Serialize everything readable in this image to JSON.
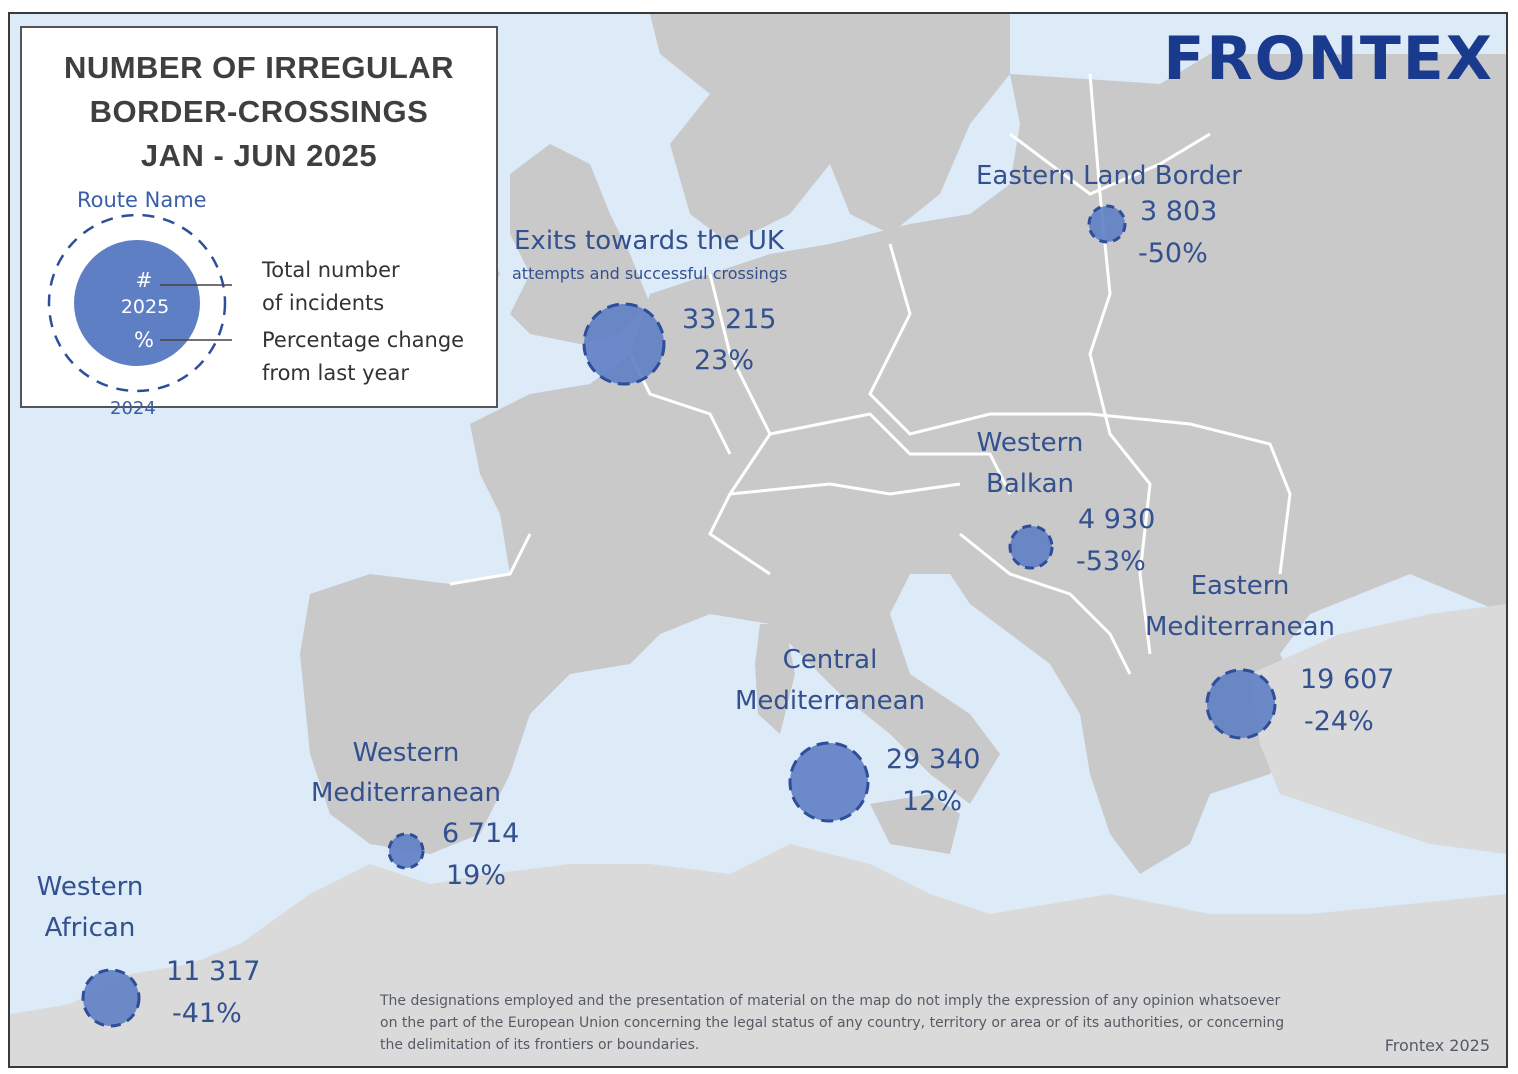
{
  "title_lines": [
    "NUMBER OF IRREGULAR",
    "BORDER-CROSSINGS",
    "JAN - JUN 2025"
  ],
  "brand": "FRONTEX",
  "legend": {
    "route_name": "Route Name",
    "hash": "#",
    "year_current": "2025",
    "percent": "%",
    "year_previous": "2024",
    "total_line1": "Total number",
    "total_line2": "of incidents",
    "change_line1": "Percentage change",
    "change_line2": "from last year"
  },
  "routes": [
    {
      "name_lines": [
        "Exits towards the UK"
      ],
      "subtitle": "attempts and successful crossings",
      "total": "33 215",
      "change": "23%"
    },
    {
      "name_lines": [
        "Eastern Land Border"
      ],
      "total": "3 803",
      "change": "-50%"
    },
    {
      "name_lines": [
        "Western",
        "Balkan"
      ],
      "total": "4 930",
      "change": "-53%"
    },
    {
      "name_lines": [
        "Eastern",
        "Mediterranean"
      ],
      "total": "19 607",
      "change": "-24%"
    },
    {
      "name_lines": [
        "Central",
        "Mediterranean"
      ],
      "total": "29 340",
      "change": "12%"
    },
    {
      "name_lines": [
        "Western",
        "Mediterranean"
      ],
      "total": "6 714",
      "change": "19%"
    },
    {
      "name_lines": [
        "Western",
        "African"
      ],
      "total": "11 317",
      "change": "-41%"
    }
  ],
  "disclaimer_lines": [
    "The designations employed and the presentation of material on the map do not imply the expression of any opinion whatsoever",
    "on the part of the European Union concerning the legal status of any country, territory or area or of its authorities, or concerning",
    "the delimitation of its frontiers or boundaries."
  ],
  "credit": "Frontex 2025",
  "colors": {
    "sea": "#dcebf7",
    "land": "#c9c9c9",
    "land_light": "#dadada",
    "border": "#ffffff",
    "bubble": "#5f7fc4",
    "bubble_stroke": "#2f4d9a",
    "text": "#33508f",
    "brand": "#1a3a8e"
  }
}
